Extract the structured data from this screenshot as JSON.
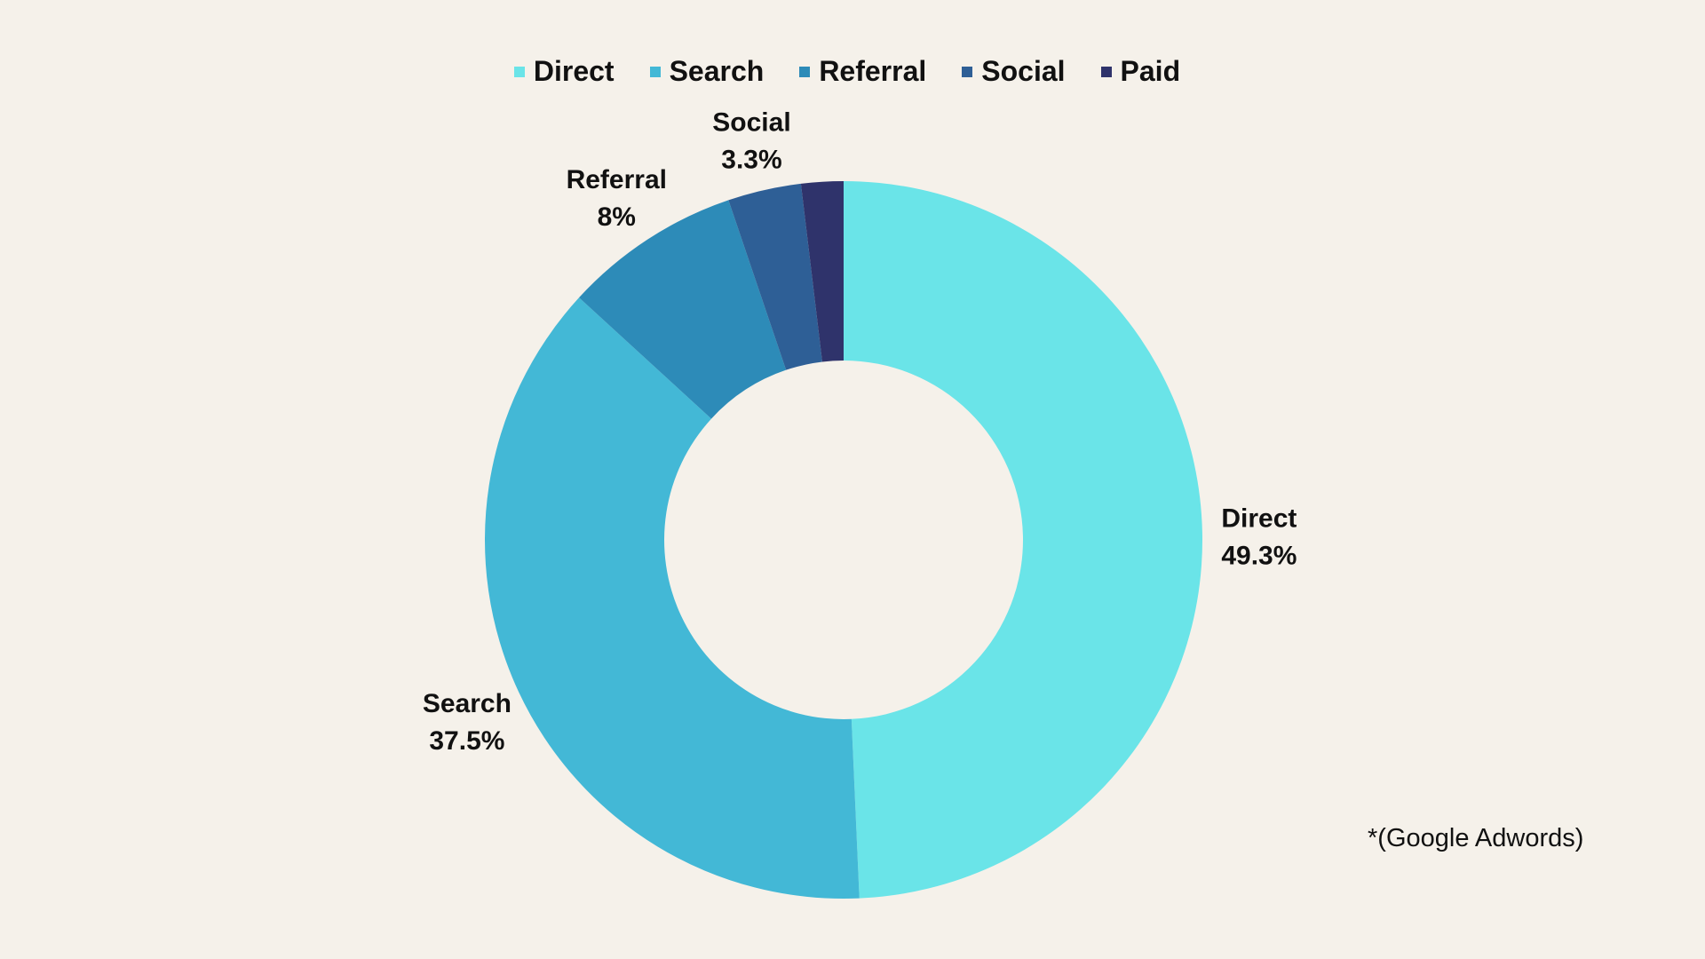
{
  "chart_data": {
    "type": "pie",
    "subtype": "donut",
    "title": "",
    "legend_position": "top",
    "categories": [
      "Direct",
      "Search",
      "Referral",
      "Social",
      "Paid"
    ],
    "values": [
      49.3,
      37.5,
      8,
      3.3,
      1.9
    ],
    "colors": [
      "#6ae4e8",
      "#43b8d6",
      "#2d8bb8",
      "#2e5f96",
      "#2f336b"
    ],
    "data_labels": [
      {
        "name": "Direct",
        "value": "49.3%"
      },
      {
        "name": "Search",
        "value": "37.5%"
      },
      {
        "name": "Referral",
        "value": "8%"
      },
      {
        "name": "Social",
        "value": "3.3%"
      },
      null
    ]
  },
  "footnote": "*(Google Adwords)"
}
